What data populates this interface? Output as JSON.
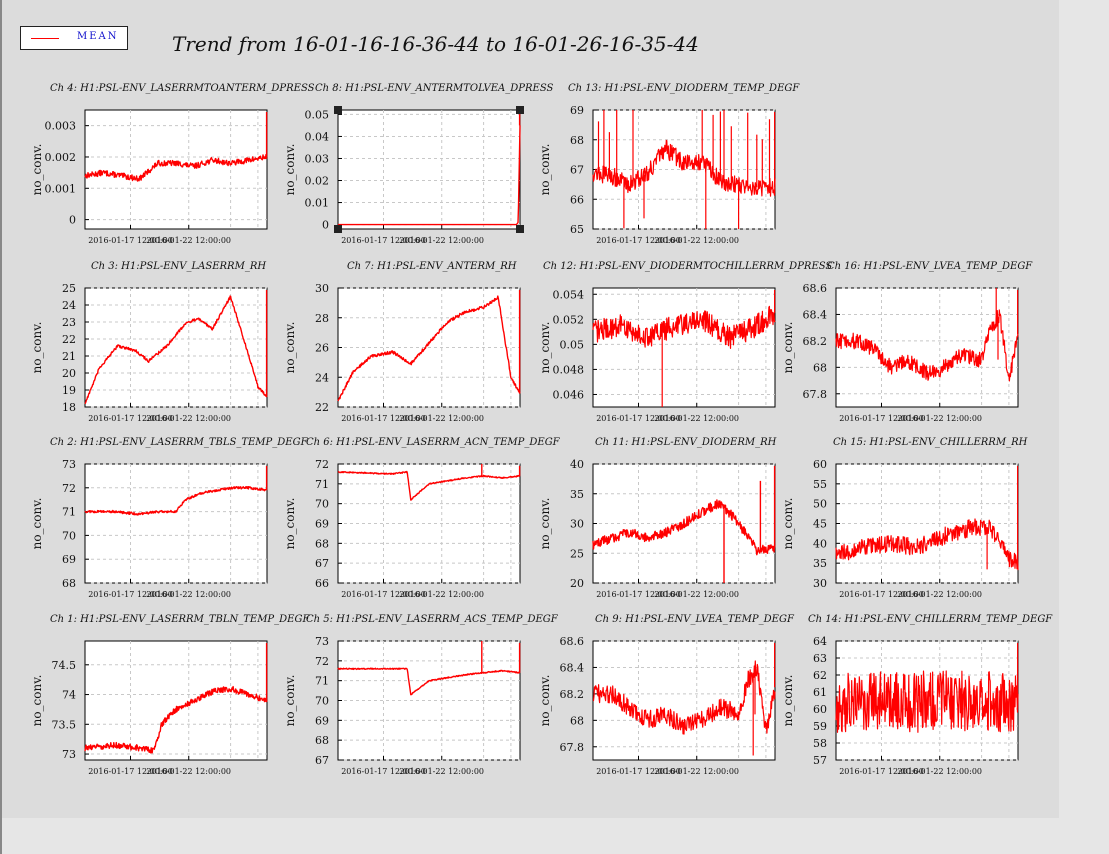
{
  "title": "Trend from 16-01-16-16-36-44 to 16-01-26-16-35-44",
  "legend": {
    "label": "MEAN",
    "color": "#ff0000"
  },
  "ylabel": "no_conv.",
  "series_color": "#ff0000",
  "chart_data": [
    {
      "type": "line",
      "title": "Ch 4: H1:PSL-ENV_LASERRMTOANTERM_DPRESS",
      "xlabel": "",
      "ylabel": "no_conv.",
      "x_ticks": [
        "2016-01-17 12:00:00",
        "2016-01-22 12:00:00"
      ],
      "ylim": [
        -0.0003,
        0.0035
      ],
      "y_ticks": [
        "0",
        "0.001",
        "0.002",
        "0.003"
      ],
      "y_tick_values": [
        0,
        0.001,
        0.002,
        0.003
      ],
      "grid": true,
      "x": [
        0,
        0.1,
        0.2,
        0.3,
        0.4,
        0.5,
        0.6,
        0.7,
        0.8,
        0.9,
        1
      ],
      "values": [
        0.0014,
        0.0015,
        0.0014,
        0.0013,
        0.0018,
        0.0018,
        0.0017,
        0.0019,
        0.0018,
        0.0019,
        0.002
      ],
      "noise": 9e-05,
      "spikes": []
    },
    {
      "type": "line",
      "title": "Ch 8: H1:PSL-ENV_ANTERMTOLVEA_DPRESS",
      "xlabel": "",
      "ylabel": "no_conv.",
      "x_ticks": [
        "2016-01-17 12:00:00",
        "2016-01-22 12:00:00"
      ],
      "ylim": [
        -0.002,
        0.052
      ],
      "y_ticks": [
        "0",
        "0.01",
        "0.02",
        "0.03",
        "0.04",
        "0.05"
      ],
      "y_tick_values": [
        0,
        0.01,
        0.02,
        0.03,
        0.04,
        0.05
      ],
      "grid": true,
      "selected": true,
      "x": [
        0,
        0.98,
        0.99,
        1
      ],
      "values": [
        0.0,
        0.0,
        0.001,
        0.045
      ],
      "noise": 0,
      "spikes": []
    },
    {
      "type": "line",
      "title": "Ch 13: H1:PSL-ENV_DIODERM_TEMP_DEGF",
      "xlabel": "",
      "ylabel": "no_conv.",
      "x_ticks": [
        "2016-01-17 12:00:00",
        "2016-01-22 12:00:00"
      ],
      "ylim": [
        65,
        69
      ],
      "y_ticks": [
        "65",
        "66",
        "67",
        "68",
        "69"
      ],
      "y_tick_values": [
        65,
        66,
        67,
        68,
        69
      ],
      "grid": true,
      "x": [
        0,
        0.1,
        0.2,
        0.3,
        0.4,
        0.5,
        0.6,
        0.7,
        0.8,
        0.9,
        1
      ],
      "values": [
        66.9,
        66.8,
        66.5,
        66.9,
        67.7,
        67.2,
        67.3,
        66.6,
        66.5,
        66.4,
        66.4
      ],
      "noise": 0.3,
      "spikes": [
        0.03,
        0.06,
        0.09,
        0.13,
        0.17,
        0.22,
        0.28,
        0.6,
        0.62,
        0.66,
        0.7,
        0.72,
        0.76,
        0.8,
        0.85,
        0.9,
        0.93,
        0.97
      ]
    },
    {
      "type": "line",
      "title": "Ch 3: H1:PSL-ENV_LASERRM_RH",
      "xlabel": "",
      "ylabel": "no_conv.",
      "x_ticks": [
        "2016-01-17 12:00:00",
        "2016-01-22 12:00:00"
      ],
      "ylim": [
        18,
        25
      ],
      "y_ticks": [
        "18",
        "19",
        "20",
        "21",
        "22",
        "23",
        "24",
        "25"
      ],
      "y_tick_values": [
        18,
        19,
        20,
        21,
        22,
        23,
        24,
        25
      ],
      "grid": true,
      "x": [
        0,
        0.08,
        0.18,
        0.28,
        0.35,
        0.45,
        0.55,
        0.62,
        0.7,
        0.8,
        0.9,
        0.95,
        1
      ],
      "values": [
        18.2,
        20.3,
        21.6,
        21.3,
        20.7,
        21.6,
        22.9,
        23.2,
        22.6,
        24.5,
        21.0,
        19.2,
        18.6
      ],
      "noise": 0.08,
      "spikes": []
    },
    {
      "type": "line",
      "title": "Ch 7: H1:PSL-ENV_ANTERM_RH",
      "xlabel": "",
      "ylabel": "no_conv.",
      "x_ticks": [
        "2016-01-17 12:00:00",
        "2016-01-22 12:00:00"
      ],
      "ylim": [
        22,
        30
      ],
      "y_ticks": [
        "22",
        "24",
        "26",
        "28",
        "30"
      ],
      "y_tick_values": [
        22,
        24,
        26,
        28,
        30
      ],
      "grid": true,
      "x": [
        0,
        0.08,
        0.18,
        0.3,
        0.4,
        0.5,
        0.6,
        0.7,
        0.8,
        0.88,
        0.95,
        1
      ],
      "values": [
        22.4,
        24.3,
        25.4,
        25.7,
        24.9,
        26.3,
        27.7,
        28.4,
        28.7,
        29.4,
        24.0,
        22.9
      ],
      "noise": 0.1,
      "spikes": []
    },
    {
      "type": "line",
      "title": "Ch 12: H1:PSL-ENV_DIODERMTOCHILLERRM_DPRESS",
      "xlabel": "",
      "ylabel": "no_conv.",
      "x_ticks": [
        "2016-01-17 12:00:00",
        "2016-01-22 12:00:00"
      ],
      "ylim": [
        0.045,
        0.0545
      ],
      "y_ticks": [
        "0.046",
        "0.048",
        "0.05",
        "0.052",
        "0.054"
      ],
      "y_tick_values": [
        0.046,
        0.048,
        0.05,
        0.052,
        0.054
      ],
      "grid": true,
      "x": [
        0,
        0.15,
        0.3,
        0.45,
        0.6,
        0.75,
        0.9,
        1
      ],
      "values": [
        0.051,
        0.0515,
        0.0505,
        0.0515,
        0.052,
        0.0505,
        0.0515,
        0.0525
      ],
      "noise": 0.0009,
      "spikes": [
        0.38
      ]
    },
    {
      "type": "line",
      "title": "Ch 16: H1:PSL-ENV_LVEA_TEMP_DEGF",
      "xlabel": "",
      "ylabel": "no_conv.",
      "x_ticks": [
        "2016-01-17 12:00:00",
        "2016-01-22 12:00:00"
      ],
      "ylim": [
        67.7,
        68.6
      ],
      "y_ticks": [
        "67.8",
        "68",
        "68.2",
        "68.4",
        "68.6"
      ],
      "y_tick_values": [
        67.8,
        68,
        68.2,
        68.4,
        68.6
      ],
      "grid": true,
      "x": [
        0,
        0.1,
        0.2,
        0.3,
        0.4,
        0.5,
        0.6,
        0.7,
        0.8,
        0.85,
        0.9,
        0.95,
        1
      ],
      "values": [
        68.2,
        68.2,
        68.15,
        68.0,
        68.05,
        67.95,
        68.0,
        68.1,
        68.05,
        68.3,
        68.4,
        67.9,
        68.25
      ],
      "noise": 0.06,
      "spikes": [
        0.88,
        0.89
      ]
    },
    {
      "type": "line",
      "title": "Ch 2: H1:PSL-ENV_LASERRM_TBLS_TEMP_DEGF",
      "xlabel": "",
      "ylabel": "no_conv.",
      "x_ticks": [
        "2016-01-17 12:00:00",
        "2016-01-22 12:00:00"
      ],
      "ylim": [
        68,
        73
      ],
      "y_ticks": [
        "68",
        "69",
        "70",
        "71",
        "72",
        "73"
      ],
      "y_tick_values": [
        68,
        69,
        70,
        71,
        72,
        73
      ],
      "grid": true,
      "x": [
        0,
        0.15,
        0.3,
        0.4,
        0.5,
        0.55,
        0.65,
        0.8,
        0.9,
        1
      ],
      "values": [
        71.0,
        71.0,
        70.9,
        71.0,
        71.0,
        71.5,
        71.8,
        72.0,
        72.0,
        71.9
      ],
      "noise": 0.05,
      "spikes": []
    },
    {
      "type": "line",
      "title": "Ch 6: H1:PSL-ENV_LASERRM_ACN_TEMP_DEGF",
      "xlabel": "",
      "ylabel": "no_conv.",
      "x_ticks": [
        "2016-01-17 12:00:00",
        "2016-01-22 12:00:00"
      ],
      "ylim": [
        66,
        72
      ],
      "y_ticks": [
        "66",
        "67",
        "68",
        "69",
        "70",
        "71",
        "72"
      ],
      "y_tick_values": [
        66,
        67,
        68,
        69,
        70,
        71,
        72
      ],
      "grid": true,
      "x": [
        0,
        0.3,
        0.38,
        0.4,
        0.5,
        0.7,
        0.8,
        0.9,
        1
      ],
      "values": [
        71.6,
        71.5,
        71.6,
        70.2,
        71.0,
        71.3,
        71.4,
        71.3,
        71.4
      ],
      "noise": 0.03,
      "spikes": [
        0.79
      ]
    },
    {
      "type": "line",
      "title": "Ch 11: H1:PSL-ENV_DIODERM_RH",
      "xlabel": "",
      "ylabel": "no_conv.",
      "x_ticks": [
        "2016-01-17 12:00:00",
        "2016-01-22 12:00:00"
      ],
      "ylim": [
        20,
        40
      ],
      "y_ticks": [
        "20",
        "25",
        "30",
        "35",
        "40"
      ],
      "y_tick_values": [
        20,
        25,
        30,
        35,
        40
      ],
      "grid": true,
      "x": [
        0,
        0.1,
        0.2,
        0.3,
        0.4,
        0.5,
        0.6,
        0.7,
        0.8,
        0.9,
        1
      ],
      "values": [
        26.5,
        27.5,
        28.5,
        27.5,
        28.5,
        30.0,
        32.0,
        33.5,
        30.0,
        25.5,
        26.0
      ],
      "noise": 0.8,
      "spikes": [
        0.72,
        0.92
      ]
    },
    {
      "type": "line",
      "title": "Ch 15: H1:PSL-ENV_CHILLERRM_RH",
      "xlabel": "",
      "ylabel": "no_conv.",
      "x_ticks": [
        "2016-01-17 12:00:00",
        "2016-01-22 12:00:00"
      ],
      "ylim": [
        30,
        60
      ],
      "y_ticks": [
        "30",
        "35",
        "40",
        "45",
        "50",
        "55",
        "60"
      ],
      "y_tick_values": [
        30,
        35,
        40,
        45,
        50,
        55,
        60
      ],
      "grid": true,
      "x": [
        0,
        0.15,
        0.3,
        0.45,
        0.6,
        0.75,
        0.85,
        0.95,
        1
      ],
      "values": [
        37,
        39,
        40,
        39,
        42,
        44,
        44,
        36,
        35
      ],
      "noise": 2.2,
      "spikes": [
        0.83
      ]
    },
    {
      "type": "line",
      "title": "Ch 1: H1:PSL-ENV_LASERRM_TBLN_TEMP_DEGF",
      "xlabel": "",
      "ylabel": "no_conv.",
      "x_ticks": [
        "2016-01-17 12:00:00",
        "2016-01-22 12:00:00"
      ],
      "ylim": [
        72.9,
        74.9
      ],
      "y_ticks": [
        "73",
        "73.5",
        "74",
        "74.5"
      ],
      "y_tick_values": [
        73,
        73.5,
        74,
        74.5
      ],
      "grid": true,
      "x": [
        0,
        0.15,
        0.3,
        0.38,
        0.42,
        0.5,
        0.6,
        0.7,
        0.8,
        0.9,
        1
      ],
      "values": [
        73.1,
        73.15,
        73.1,
        73.05,
        73.5,
        73.75,
        73.9,
        74.05,
        74.1,
        74.0,
        73.9
      ],
      "noise": 0.05,
      "spikes": []
    },
    {
      "type": "line",
      "title": "Ch 5: H1:PSL-ENV_LASERRM_ACS_TEMP_DEGF",
      "xlabel": "",
      "ylabel": "no_conv.",
      "x_ticks": [
        "2016-01-17 12:00:00",
        "2016-01-22 12:00:00"
      ],
      "ylim": [
        67,
        73
      ],
      "y_ticks": [
        "67",
        "68",
        "69",
        "70",
        "71",
        "72",
        "73"
      ],
      "y_tick_values": [
        67,
        68,
        69,
        70,
        71,
        72,
        73
      ],
      "grid": true,
      "x": [
        0,
        0.3,
        0.38,
        0.4,
        0.5,
        0.7,
        0.8,
        0.9,
        1
      ],
      "values": [
        71.6,
        71.6,
        71.6,
        70.3,
        71.0,
        71.3,
        71.4,
        71.5,
        71.4
      ],
      "noise": 0.03,
      "spikes": [
        0.79
      ]
    },
    {
      "type": "line",
      "title": "Ch 9: H1:PSL-ENV_LVEA_TEMP_DEGF",
      "xlabel": "",
      "ylabel": "no_conv.",
      "x_ticks": [
        "2016-01-17 12:00:00",
        "2016-01-22 12:00:00"
      ],
      "ylim": [
        67.7,
        68.6
      ],
      "y_ticks": [
        "67.8",
        "68",
        "68.2",
        "68.4",
        "68.6"
      ],
      "y_tick_values": [
        67.8,
        68,
        68.2,
        68.4,
        68.6
      ],
      "grid": true,
      "x": [
        0,
        0.1,
        0.2,
        0.3,
        0.4,
        0.5,
        0.6,
        0.7,
        0.8,
        0.85,
        0.9,
        0.95,
        1
      ],
      "values": [
        68.2,
        68.2,
        68.1,
        68.0,
        68.05,
        67.95,
        68.0,
        68.1,
        68.05,
        68.3,
        68.4,
        67.9,
        68.25
      ],
      "noise": 0.07,
      "spikes": [
        0.88,
        0.89
      ]
    },
    {
      "type": "line",
      "title": "Ch 14: H1:PSL-ENV_CHILLERRM_TEMP_DEGF",
      "xlabel": "",
      "ylabel": "no_conv.",
      "x_ticks": [
        "2016-01-17 12:00:00",
        "2016-01-22 12:00:00"
      ],
      "ylim": [
        57,
        64
      ],
      "y_ticks": [
        "57",
        "58",
        "59",
        "60",
        "61",
        "62",
        "63",
        "64"
      ],
      "y_tick_values": [
        57,
        58,
        59,
        60,
        61,
        62,
        63,
        64
      ],
      "grid": true,
      "x": [
        0,
        0.2,
        0.4,
        0.6,
        0.8,
        1
      ],
      "values": [
        60.4,
        60.6,
        60.4,
        60.5,
        60.5,
        60.3
      ],
      "noise": 1.8,
      "spikes": []
    }
  ]
}
